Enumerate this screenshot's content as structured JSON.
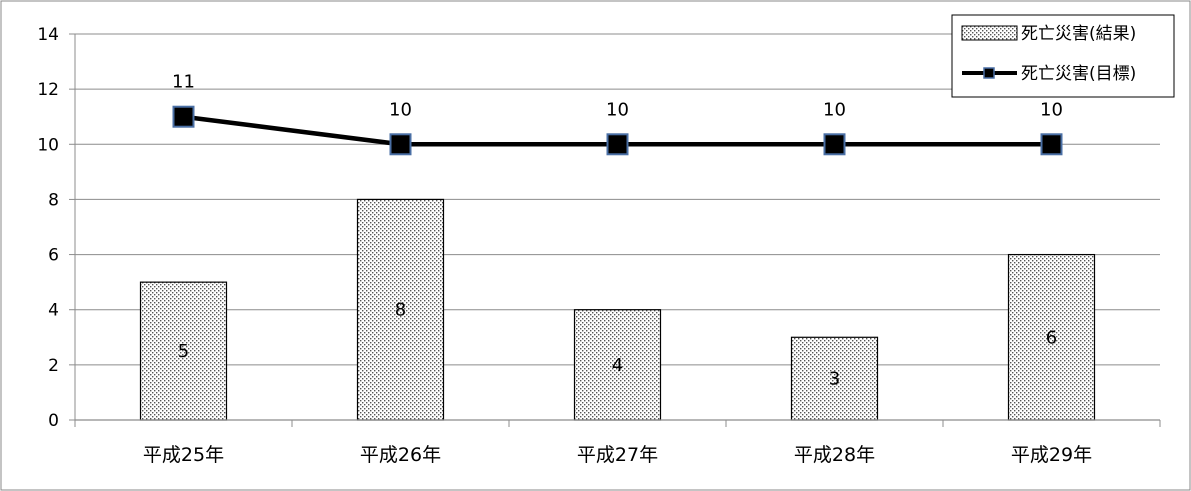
{
  "chart_data": {
    "type": "bar",
    "categories": [
      "平成25年",
      "平成26年",
      "平成27年",
      "平成28年",
      "平成29年"
    ],
    "series": [
      {
        "name": "死亡災害(結果)",
        "kind": "bar",
        "values": [
          5,
          8,
          4,
          3,
          6
        ],
        "pattern": "dotted"
      },
      {
        "name": "死亡災害(目標)",
        "kind": "line",
        "values": [
          11,
          10,
          10,
          10,
          10
        ],
        "color": "#000000",
        "marker": "square"
      }
    ],
    "ylim": [
      0,
      14
    ],
    "yticks": [
      0,
      2,
      4,
      6,
      8,
      10,
      12,
      14
    ],
    "grid": true,
    "legend": "top-right"
  },
  "colors": {
    "bar_fill": "#ffffff",
    "bar_dots": "#555555",
    "line": "#000000",
    "marker_fill": "#000000",
    "marker_stroke": "#4a6fa5",
    "grid": "#8c8c8c",
    "frame": "#888888"
  }
}
